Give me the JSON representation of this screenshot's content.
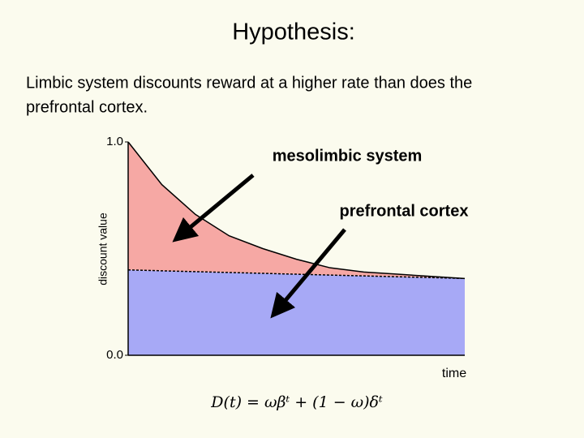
{
  "chart_data": {
    "type": "area",
    "title": "Hypothesis:",
    "subtitle": [
      "Limbic system discounts reward at a higher rate than does the",
      "prefrontal cortex."
    ],
    "x": [
      0,
      1,
      2,
      3,
      4,
      5,
      6,
      7,
      8,
      9,
      10
    ],
    "xlim": [
      0,
      10
    ],
    "ylim": [
      0,
      1
    ],
    "yticks": [
      {
        "value": 0,
        "label": "0.0"
      },
      {
        "value": 1,
        "label": "1.0"
      }
    ],
    "y_label": "discount value",
    "x_label": "time",
    "formula": "D(t) = ωβᵗ + (1 − ω)δᵗ",
    "series": [
      {
        "name": "mesolimbic system",
        "color": "#f6a8a4",
        "values": [
          1.0,
          0.8,
          0.66,
          0.56,
          0.5,
          0.45,
          0.41,
          0.39,
          0.38,
          0.37,
          0.36
        ]
      },
      {
        "name": "prefrontal cortex",
        "color": "#a7a9f6",
        "values": [
          0.4,
          0.396,
          0.392,
          0.388,
          0.384,
          0.38,
          0.376,
          0.372,
          0.368,
          0.364,
          0.36
        ]
      }
    ]
  }
}
